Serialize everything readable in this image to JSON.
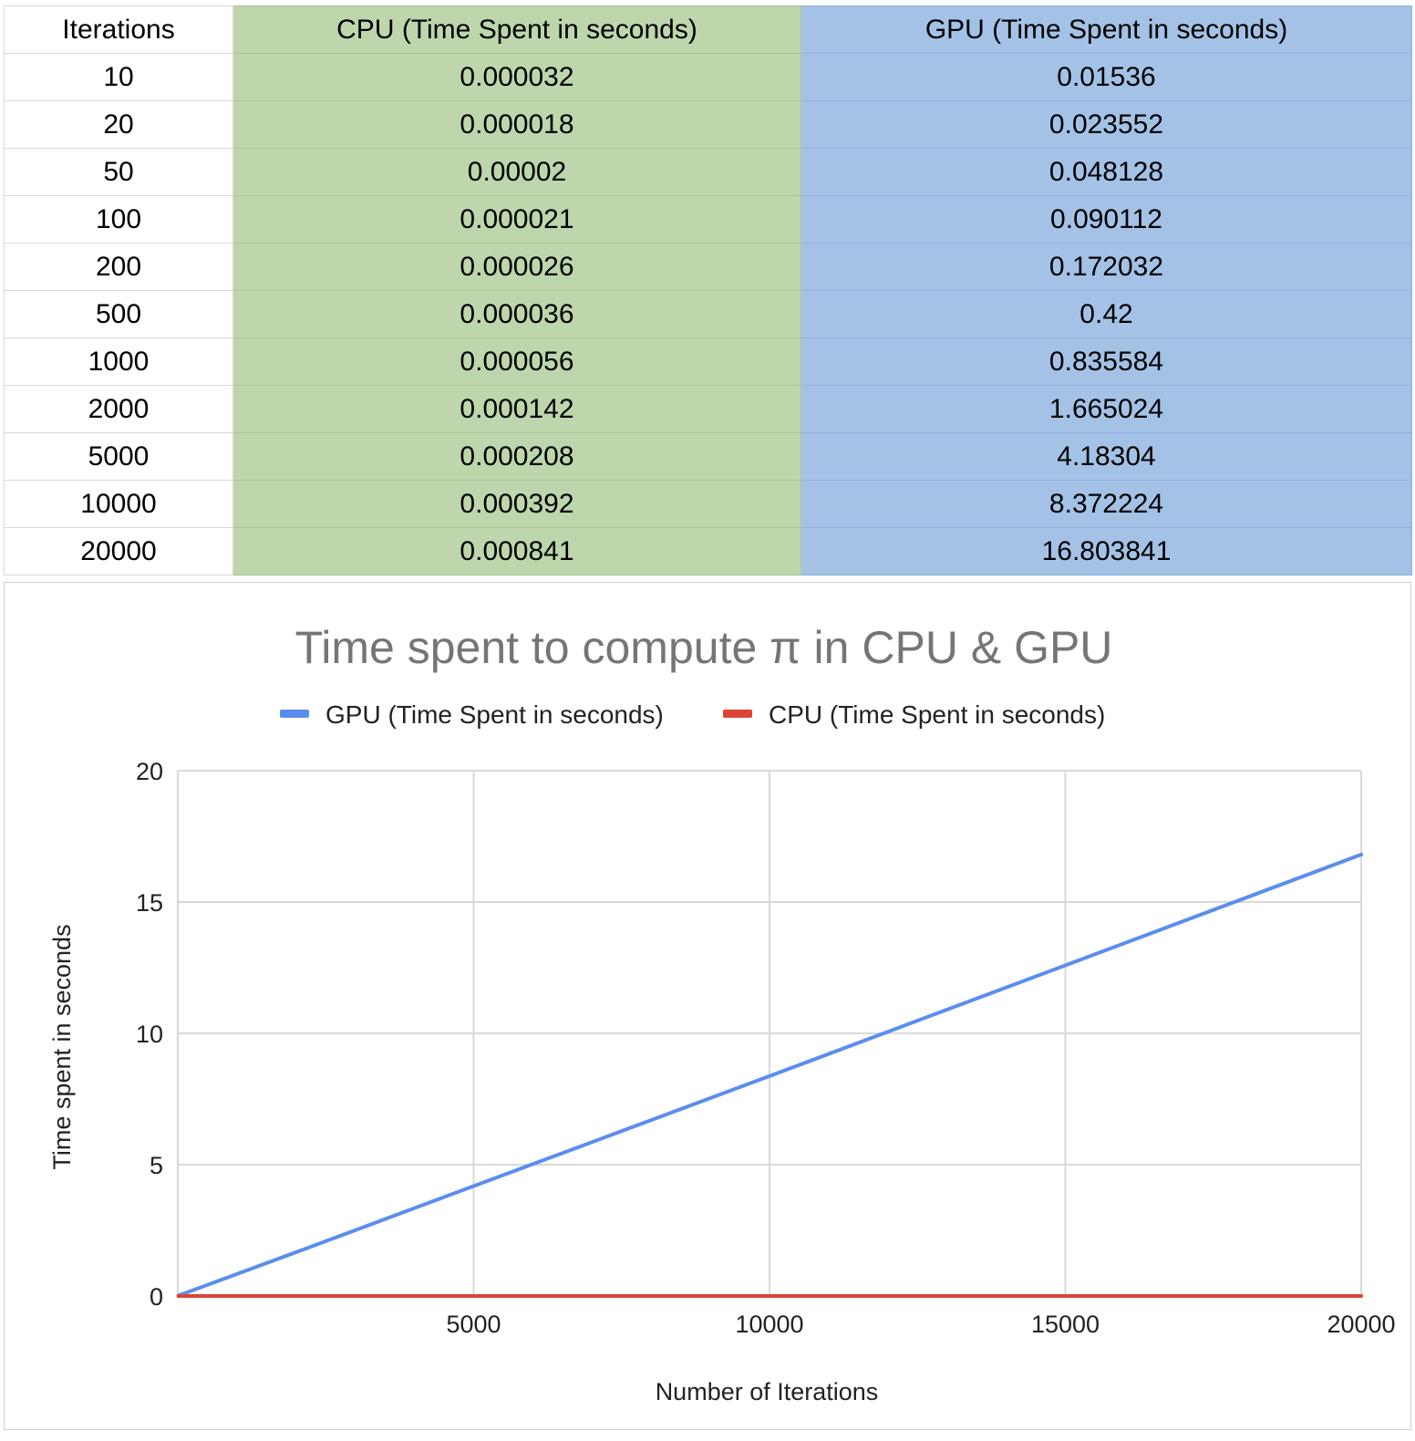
{
  "table": {
    "headers": [
      "Iterations",
      "CPU (Time Spent in seconds)",
      "GPU (Time Spent in seconds)"
    ],
    "rows": [
      [
        "10",
        "0.000032",
        "0.01536"
      ],
      [
        "20",
        "0.000018",
        "0.023552"
      ],
      [
        "50",
        "0.00002",
        "0.048128"
      ],
      [
        "100",
        "0.000021",
        "0.090112"
      ],
      [
        "200",
        "0.000026",
        "0.172032"
      ],
      [
        "500",
        "0.000036",
        "0.42"
      ],
      [
        "1000",
        "0.000056",
        "0.835584"
      ],
      [
        "2000",
        "0.000142",
        "1.665024"
      ],
      [
        "5000",
        "0.000208",
        "4.18304"
      ],
      [
        "10000",
        "0.000392",
        "8.372224"
      ],
      [
        "20000",
        "0.000841",
        "16.803841"
      ]
    ]
  },
  "chart_data": {
    "type": "line",
    "title": "Time spent to compute π in CPU & GPU",
    "xlabel": "Number of Iterations",
    "ylabel": "Time spent in seconds",
    "x": [
      10,
      20,
      50,
      100,
      200,
      500,
      1000,
      2000,
      5000,
      10000,
      20000
    ],
    "series": [
      {
        "name": "GPU (Time Spent in seconds)",
        "color": "#5b8def",
        "values": [
          0.01536,
          0.023552,
          0.048128,
          0.090112,
          0.172032,
          0.42,
          0.835584,
          1.665024,
          4.18304,
          8.372224,
          16.803841
        ]
      },
      {
        "name": "CPU (Time Spent in seconds)",
        "color": "#db4437",
        "values": [
          3.2e-05,
          1.8e-05,
          2e-05,
          2.1e-05,
          2.6e-05,
          3.6e-05,
          5.6e-05,
          0.000142,
          0.000208,
          0.000392,
          0.000841
        ]
      }
    ],
    "xlim": [
      0,
      20000
    ],
    "ylim": [
      0,
      20
    ],
    "xticks": [
      5000,
      10000,
      15000,
      20000
    ],
    "yticks": [
      0,
      5,
      10,
      15,
      20
    ],
    "grid": true,
    "legend": "top-center"
  }
}
